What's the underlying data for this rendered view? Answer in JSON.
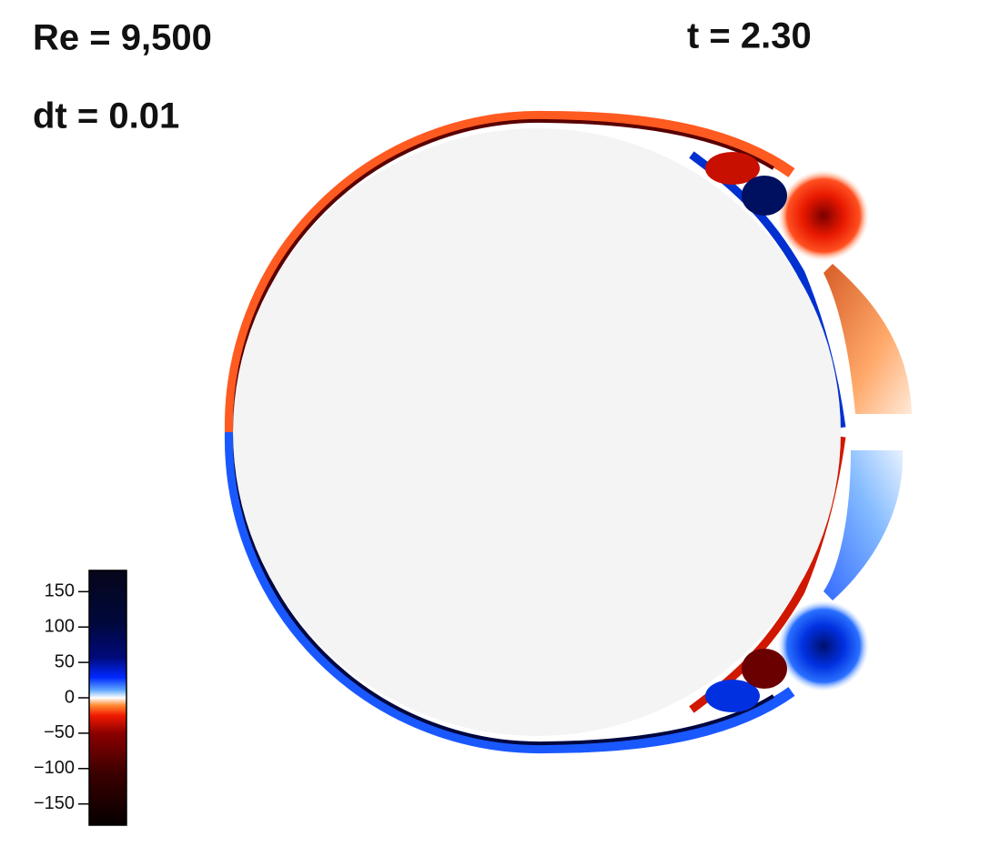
{
  "annotations": {
    "reynolds": "Re = 9,500",
    "time": "t = 2.30",
    "timestep": "dt = 0.01"
  },
  "colorbar": {
    "range": [
      -180,
      180
    ],
    "ticks": [
      150,
      100,
      50,
      0,
      {
        "value": -50,
        "label": "−50"
      },
      {
        "value": -100,
        "label": "−100"
      },
      {
        "value": -150,
        "label": "−150"
      }
    ]
  }
}
